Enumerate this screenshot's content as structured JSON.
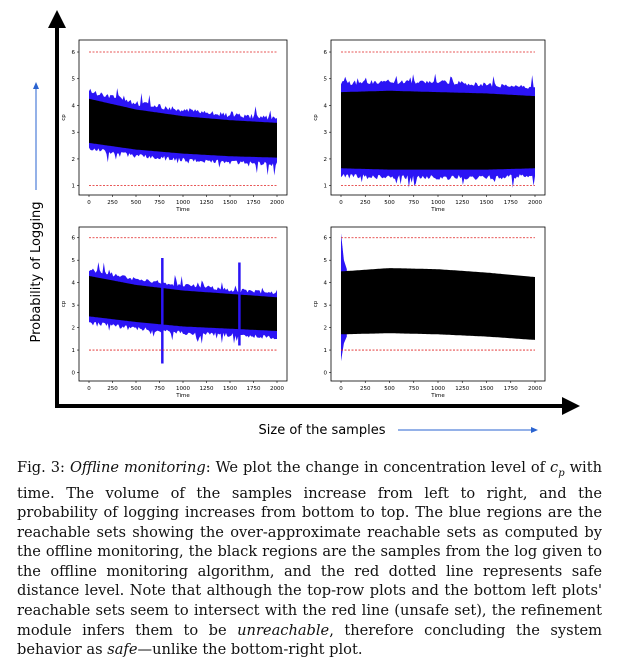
{
  "figure": {
    "y_axis_label": "Probability of Logging",
    "x_axis_label": "Size of the samples",
    "colors": {
      "reach": "#2b14f5",
      "samples": "#000000",
      "safe_line": "#e02020",
      "axes": "#000000",
      "guide_arrow": "#2a63d0"
    },
    "chart_data": [
      {
        "type": "area",
        "position_label": "top-left",
        "ylabel": "cp",
        "xlabel": "Time",
        "x_ticks": [
          0,
          250,
          500,
          750,
          1000,
          1250,
          1500,
          1750,
          2000
        ],
        "y_ticks": [
          1,
          2,
          3,
          4,
          5,
          6
        ],
        "xlim": [
          0,
          2000
        ],
        "ylim": [
          0.8,
          6.3
        ],
        "safe_levels": [
          1,
          6
        ],
        "series": [
          {
            "kind": "reach_upper",
            "x": [
              0,
              500,
              1000,
              1500,
              2000
            ],
            "values": [
              4.45,
              4.0,
              3.75,
              3.55,
              3.45
            ]
          },
          {
            "kind": "samples_upper",
            "x": [
              0,
              500,
              1000,
              1500,
              2000
            ],
            "values": [
              4.25,
              3.85,
              3.6,
              3.45,
              3.35
            ]
          },
          {
            "kind": "samples_lower",
            "x": [
              0,
              500,
              1000,
              1500,
              2000
            ],
            "values": [
              2.6,
              2.35,
              2.2,
              2.1,
              2.05
            ]
          },
          {
            "kind": "reach_lower",
            "x": [
              0,
              500,
              1000,
              1500,
              2000
            ],
            "values": [
              2.45,
              2.2,
              2.05,
              1.95,
              1.9
            ]
          }
        ]
      },
      {
        "type": "area",
        "position_label": "top-right",
        "ylabel": "cp",
        "xlabel": "Time",
        "x_ticks": [
          0,
          250,
          500,
          750,
          1000,
          1250,
          1500,
          1750,
          2000
        ],
        "y_ticks": [
          1,
          2,
          3,
          4,
          5,
          6
        ],
        "xlim": [
          0,
          2000
        ],
        "ylim": [
          0.8,
          6.3
        ],
        "safe_levels": [
          1,
          6
        ],
        "series": [
          {
            "kind": "reach_upper",
            "x": [
              0,
              500,
              1000,
              1500,
              2000
            ],
            "values": [
              4.75,
              4.8,
              4.8,
              4.7,
              4.6
            ]
          },
          {
            "kind": "samples_upper",
            "x": [
              0,
              500,
              1000,
              1500,
              2000
            ],
            "values": [
              4.5,
              4.55,
              4.5,
              4.45,
              4.35
            ]
          },
          {
            "kind": "samples_lower",
            "x": [
              0,
              500,
              1000,
              1500,
              2000
            ],
            "values": [
              1.65,
              1.6,
              1.6,
              1.6,
              1.65
            ]
          },
          {
            "kind": "reach_lower",
            "x": [
              0,
              500,
              1000,
              1500,
              2000
            ],
            "values": [
              1.45,
              1.4,
              1.4,
              1.4,
              1.45
            ]
          }
        ]
      },
      {
        "type": "area",
        "position_label": "bottom-left",
        "ylabel": "cp",
        "xlabel": "Time",
        "x_ticks": [
          0,
          250,
          500,
          750,
          1000,
          1250,
          1500,
          1750,
          2000
        ],
        "y_ticks": [
          0,
          1,
          2,
          3,
          4,
          5,
          6
        ],
        "xlim": [
          0,
          2000
        ],
        "ylim": [
          -0.2,
          6.3
        ],
        "safe_levels": [
          1,
          6
        ],
        "series": [
          {
            "kind": "reach_upper",
            "x": [
              0,
              500,
              1000,
              1500,
              2000
            ],
            "values": [
              4.5,
              4.05,
              3.8,
              3.6,
              3.45
            ]
          },
          {
            "kind": "samples_upper",
            "x": [
              0,
              500,
              1000,
              1500,
              2000
            ],
            "values": [
              4.3,
              3.9,
              3.65,
              3.5,
              3.35
            ]
          },
          {
            "kind": "samples_lower",
            "x": [
              0,
              500,
              1000,
              1500,
              2000
            ],
            "values": [
              2.5,
              2.25,
              2.05,
              1.95,
              1.85
            ]
          },
          {
            "kind": "reach_lower",
            "x": [
              0,
              500,
              1000,
              1500,
              2000
            ],
            "values": [
              2.3,
              2.05,
              1.85,
              1.75,
              1.65
            ]
          }
        ]
      },
      {
        "type": "area",
        "position_label": "bottom-right",
        "ylabel": "cp",
        "xlabel": "Time",
        "x_ticks": [
          0,
          250,
          500,
          750,
          1000,
          1250,
          1500,
          1750,
          2000
        ],
        "y_ticks": [
          0,
          1,
          2,
          3,
          4,
          5,
          6
        ],
        "xlim": [
          0,
          2000
        ],
        "ylim": [
          -0.2,
          6.3
        ],
        "safe_levels": [
          1,
          6
        ],
        "series": [
          {
            "kind": "reach_upper",
            "x": [
              0,
              30,
              60
            ],
            "values": [
              6.2,
              5.0,
              4.6
            ]
          },
          {
            "kind": "samples_upper",
            "x": [
              0,
              500,
              1000,
              1500,
              2000
            ],
            "values": [
              4.5,
              4.65,
              4.6,
              4.45,
              4.25
            ]
          },
          {
            "kind": "samples_lower",
            "x": [
              0,
              500,
              1000,
              1500,
              2000
            ],
            "values": [
              1.7,
              1.75,
              1.7,
              1.6,
              1.45
            ]
          },
          {
            "kind": "reach_lower",
            "x": [
              0,
              30,
              60
            ],
            "values": [
              0.5,
              1.3,
              1.6
            ]
          }
        ]
      }
    ]
  },
  "caption": {
    "lead": "Fig. 3:",
    "title": "Offline monitoring",
    "body_1": ": We plot the change in concentration level of ",
    "var_c": "c",
    "var_p": "p",
    "body_2": " with time. The volume of the samples increase from left to right, and the probability of logging increases from bottom to top. The blue regions are the reachable sets showing the over-approximate reachable sets as computed by the offline monitoring, the black regions are the samples from the log given to the offline monitoring algorithm, and the red dotted line represents safe distance level. Note that although the top-row plots and the bottom left plots' reachable sets seem to intersect with the red line (unsafe set), the refinement module infers them to be ",
    "unreachable": "unreachable",
    "body_3": ", therefore concluding the system behavior as ",
    "safe": "safe",
    "body_4": "—unlike the bottom-right plot."
  }
}
